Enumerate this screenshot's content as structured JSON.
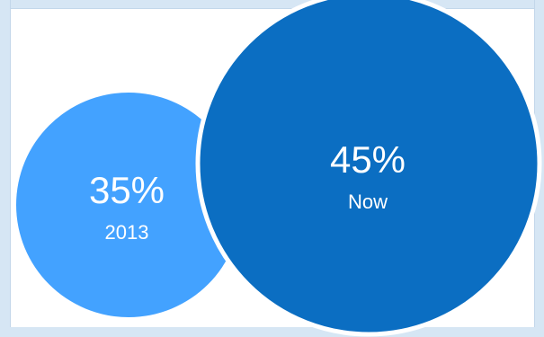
{
  "chart_data": {
    "type": "bubble",
    "series": [
      {
        "value_label": "35%",
        "label": "2013",
        "value": 35,
        "color": "#43a2ff"
      },
      {
        "value_label": "45%",
        "label": "Now",
        "value": 45,
        "color": "#0b6ec2"
      }
    ]
  },
  "colors": {
    "frame": "#d6e6f4",
    "bubble_gap": "#ffffff",
    "text": "#ffffff"
  }
}
